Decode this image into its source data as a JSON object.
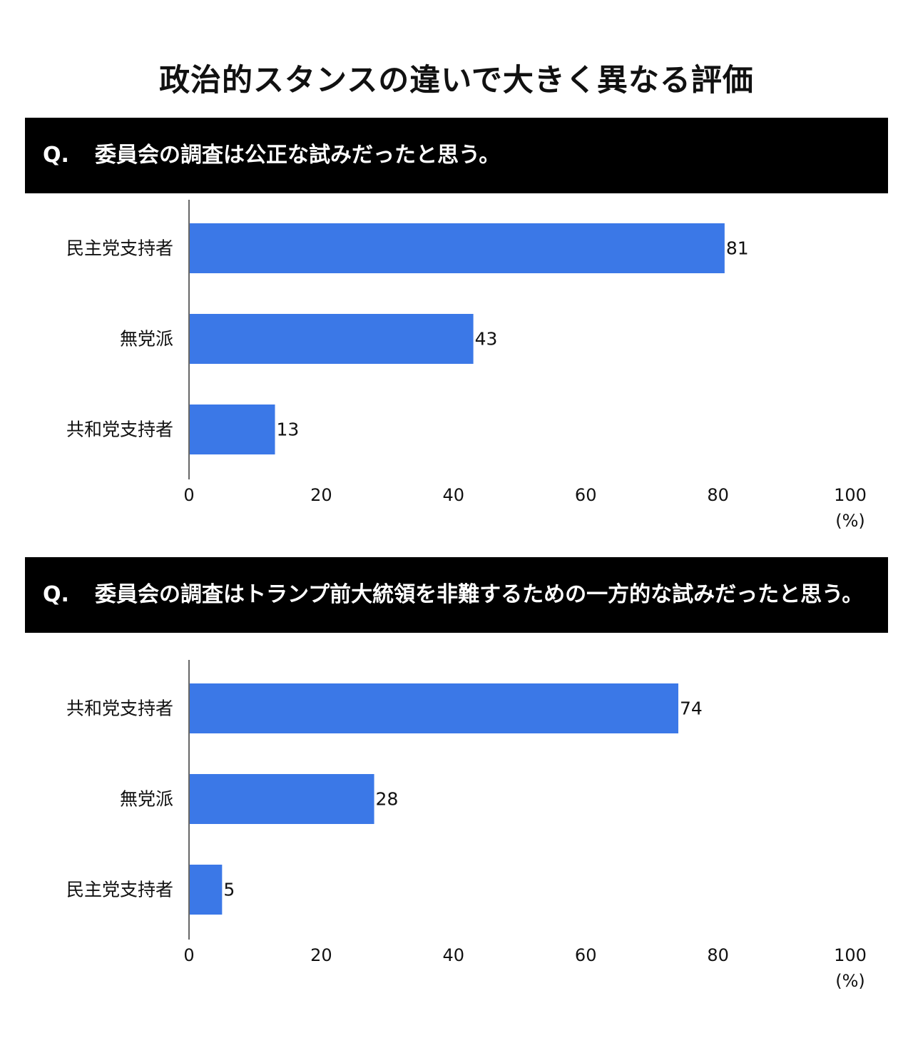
{
  "title": "政治的スタンスの違いで大きく異なる評価",
  "colors": {
    "bar": "#3B78E7",
    "header_bg": "#000000",
    "header_text": "#ffffff"
  },
  "sections": [
    {
      "q_prefix": "Q.",
      "question": "委員会の調査は公正な試みだったと思う。"
    },
    {
      "q_prefix": "Q.",
      "question": "委員会の調査はトランプ前大統領を非難するための一方的な試みだったと思う。"
    }
  ],
  "chart_data": [
    {
      "type": "bar",
      "orientation": "horizontal",
      "categories": [
        "民主党支持者",
        "無党派",
        "共和党支持者"
      ],
      "values": [
        81,
        43,
        13
      ],
      "x_ticks": [
        "0",
        "20",
        "40",
        "60",
        "80",
        "100"
      ],
      "xlim": [
        0,
        100
      ],
      "unit": "(%)",
      "grid": false
    },
    {
      "type": "bar",
      "orientation": "horizontal",
      "categories": [
        "共和党支持者",
        "無党派",
        "民主党支持者"
      ],
      "values": [
        74,
        28,
        5
      ],
      "x_ticks": [
        "0",
        "20",
        "40",
        "60",
        "80",
        "100"
      ],
      "xlim": [
        0,
        100
      ],
      "unit": "(%)",
      "grid": false
    }
  ]
}
